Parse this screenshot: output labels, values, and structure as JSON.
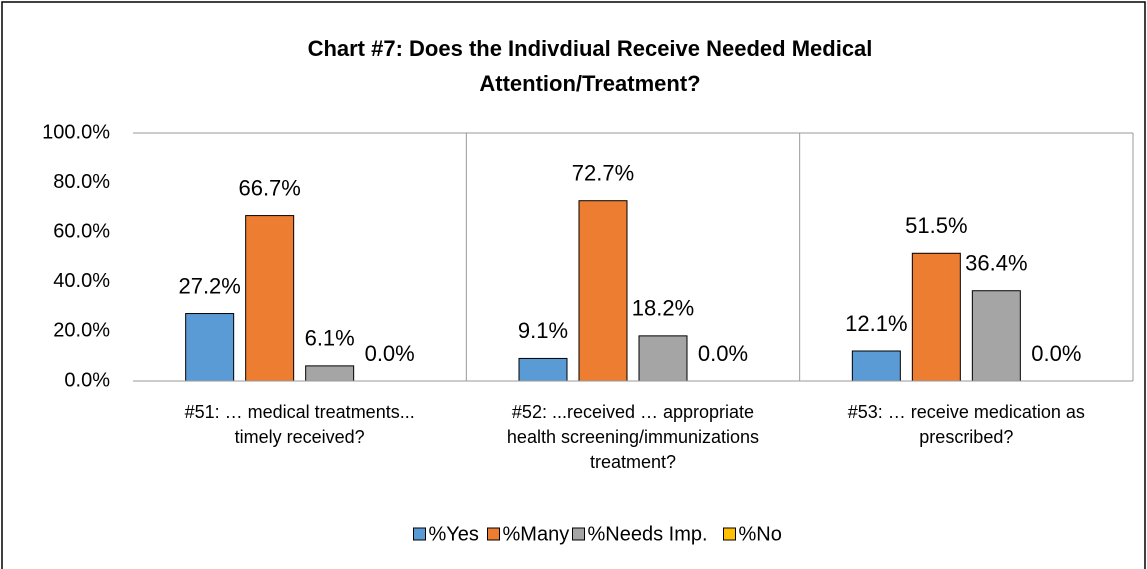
{
  "chart_data": {
    "type": "bar",
    "title": [
      "Chart #7: Does the Indivdiual Receive Needed Medical",
      "Attention/Treatment?"
    ],
    "categories": [
      [
        "#51: … medical treatments...",
        "timely received?"
      ],
      [
        "#52: ...received … appropriate",
        "health screening/immunizations",
        "treatment?"
      ],
      [
        "#53: … receive medication as",
        "prescribed?"
      ]
    ],
    "series": [
      {
        "name": "%Yes",
        "color": "#5b9bd5",
        "values": [
          27.2,
          9.1,
          12.1
        ],
        "value_labels": [
          "27.2%",
          "9.1%",
          "12.1%"
        ]
      },
      {
        "name": "%Many",
        "color": "#ed7d31",
        "values": [
          66.7,
          72.7,
          51.5
        ],
        "value_labels": [
          "66.7%",
          "72.7%",
          "51.5%"
        ]
      },
      {
        "name": "%Needs Imp.",
        "color": "#a5a5a5",
        "values": [
          6.1,
          18.2,
          36.4
        ],
        "value_labels": [
          "6.1%",
          "18.2%",
          "36.4%"
        ]
      },
      {
        "name": "%No",
        "color": "#ffc000",
        "values": [
          0,
          0,
          0
        ],
        "value_labels": [
          "0.0%",
          "0.0%",
          "0.0%"
        ]
      }
    ],
    "ylim": [
      0,
      100
    ],
    "yticks": [
      {
        "value": 0,
        "label": "0.0%"
      },
      {
        "value": 20,
        "label": "20.0%"
      },
      {
        "value": 40,
        "label": "40.0%"
      },
      {
        "value": 60,
        "label": "60.0%"
      },
      {
        "value": 80,
        "label": "80.0%"
      },
      {
        "value": 100,
        "label": "100.0%"
      }
    ],
    "grid": false,
    "legend": "bottom"
  }
}
